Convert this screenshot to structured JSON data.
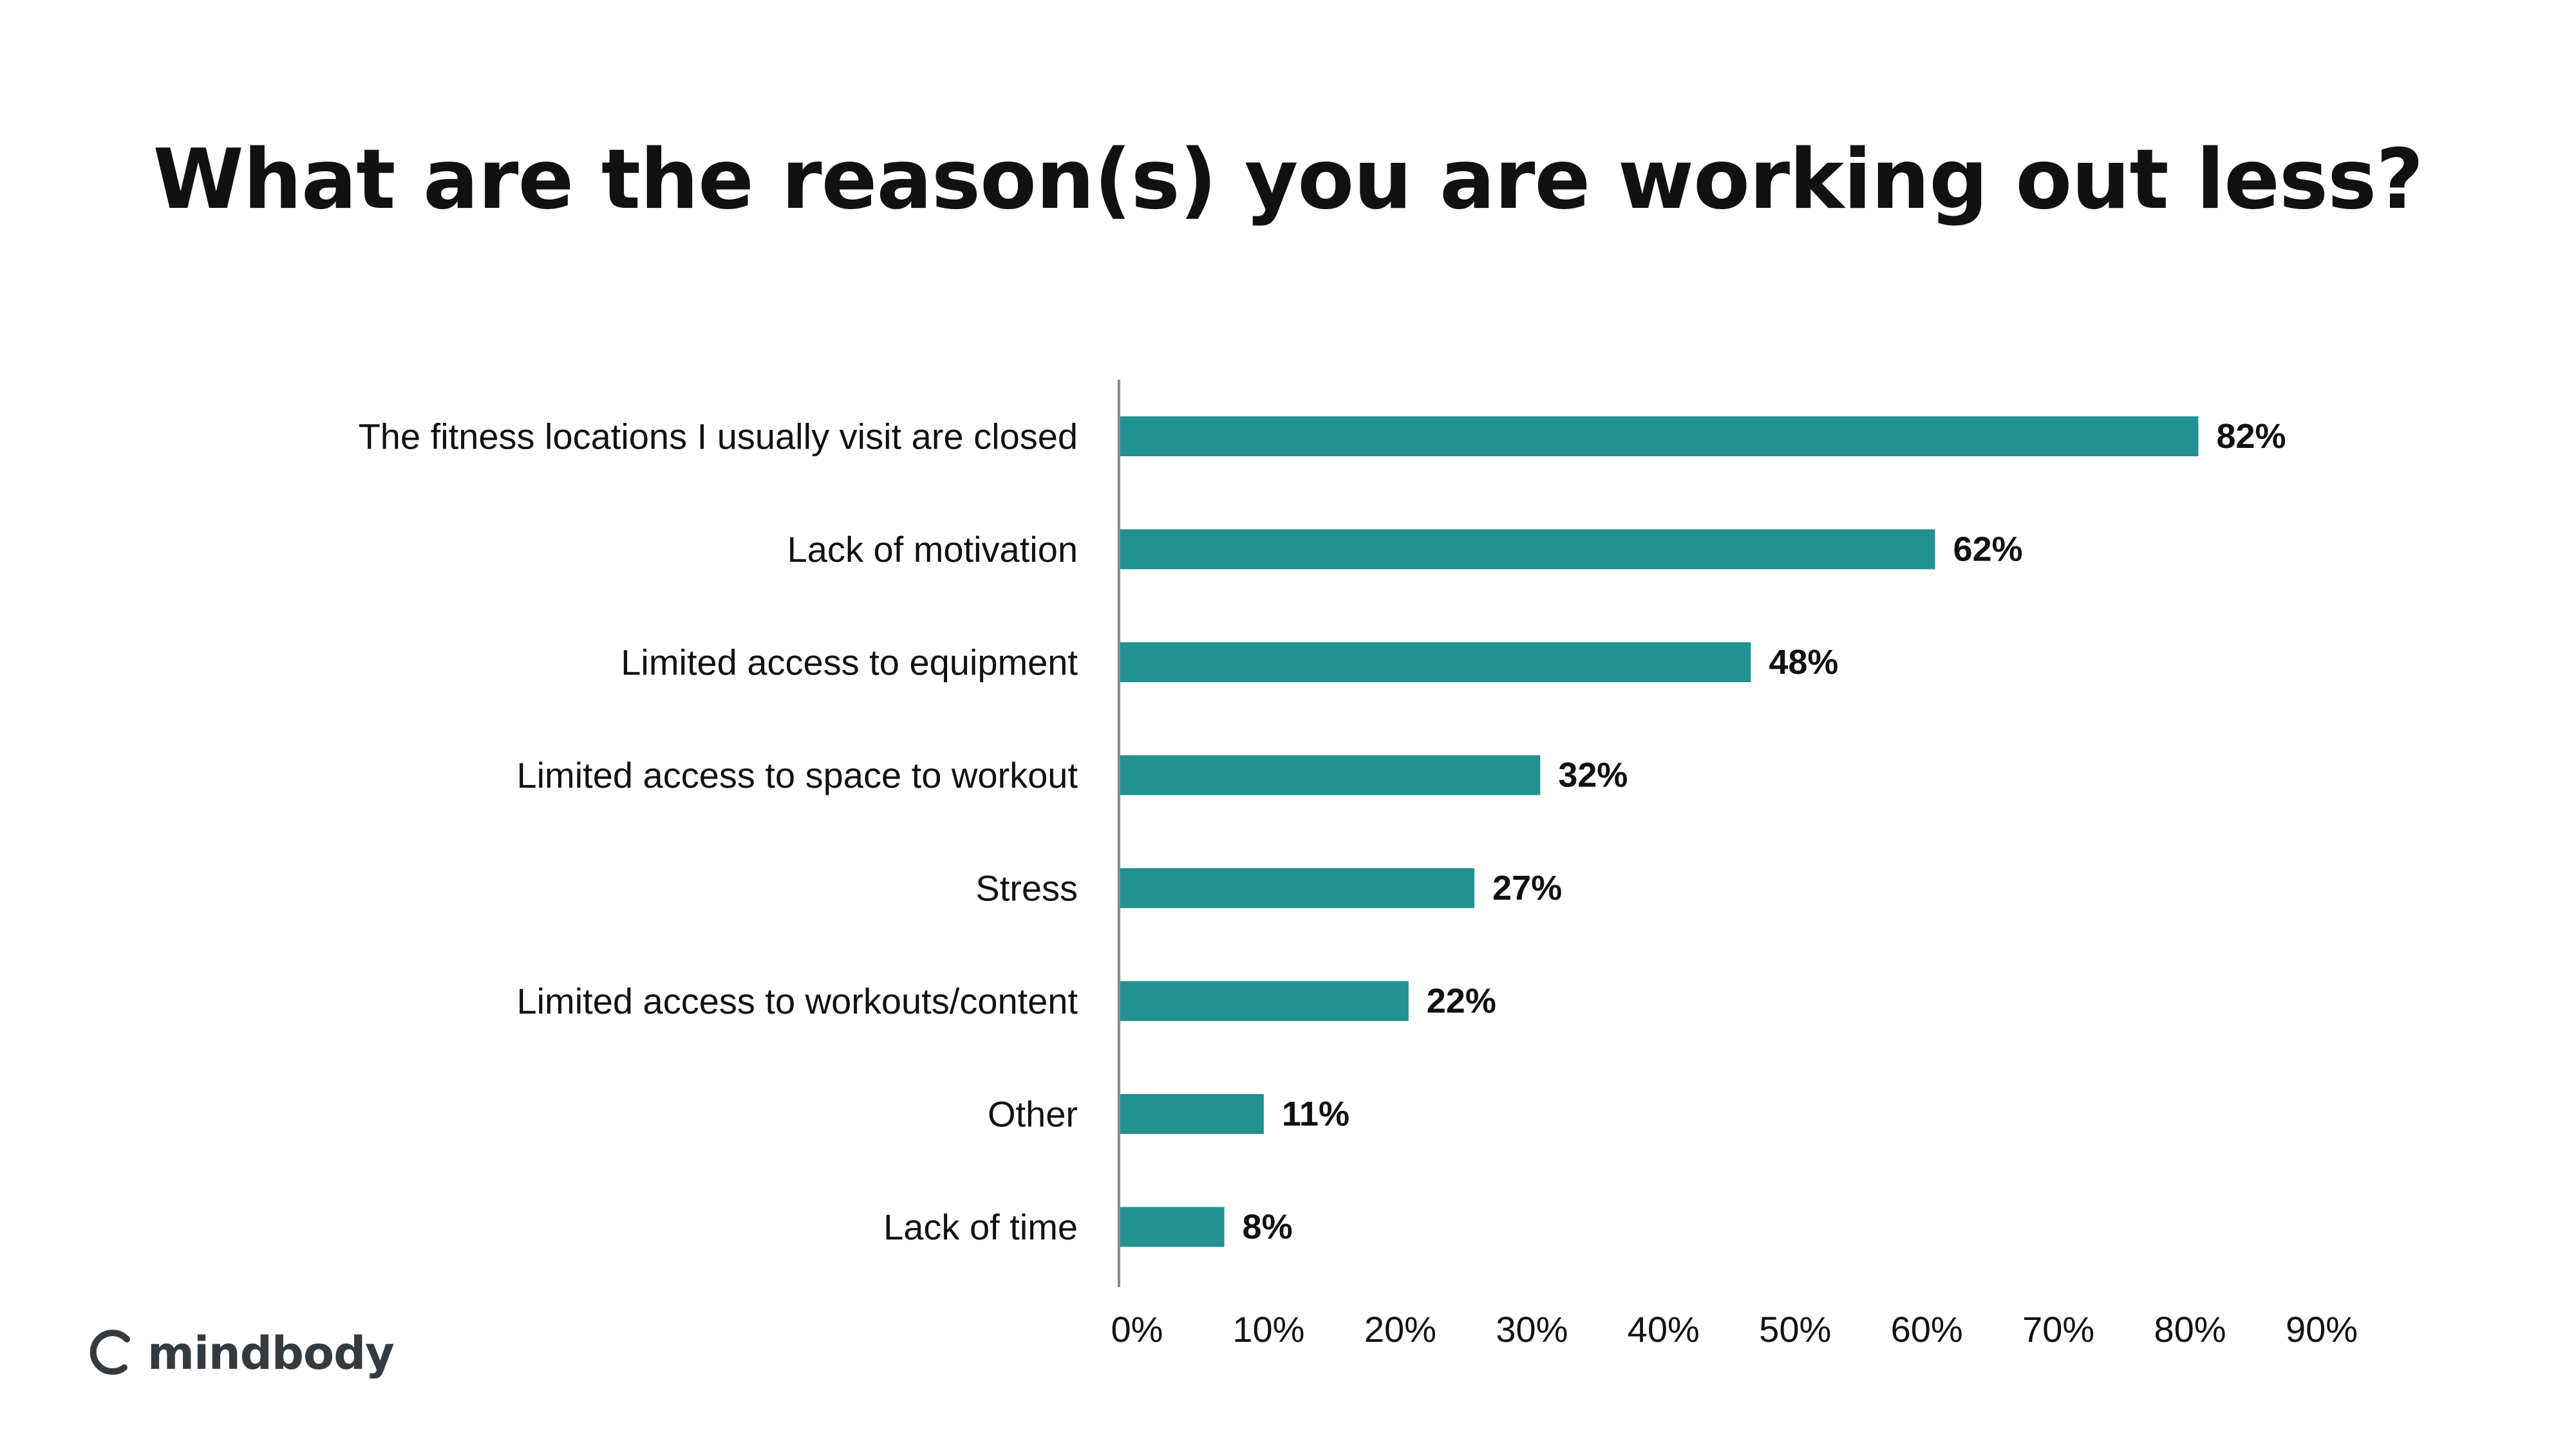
{
  "brand": {
    "name": "mindbody",
    "color": "#333a40"
  },
  "colors": {
    "bar": "#229191",
    "axis": "#8a8a8a",
    "text": "#111111"
  },
  "chart_data": {
    "type": "bar",
    "orientation": "horizontal",
    "title": "What are the reason(s) you are working out less?",
    "xlabel": "",
    "ylabel": "",
    "categories": [
      "The fitness locations I usually visit are closed",
      "Lack of motivation",
      "Limited access to equipment",
      "Limited access to space to workout",
      "Stress",
      "Limited access to workouts/content",
      "Other",
      "Lack of time"
    ],
    "values": [
      82,
      62,
      48,
      32,
      27,
      22,
      11,
      8
    ],
    "value_labels": [
      "82%",
      "62%",
      "48%",
      "32%",
      "27%",
      "22%",
      "11%",
      "8%"
    ],
    "xlim": [
      0,
      90
    ],
    "x_ticks": [
      0,
      10,
      20,
      30,
      40,
      50,
      60,
      70,
      80,
      90
    ],
    "x_tick_labels": [
      "0%",
      "10%",
      "20%",
      "30%",
      "40%",
      "50%",
      "60%",
      "70%",
      "80%",
      "90%"
    ],
    "grid": false,
    "legend": "none"
  }
}
